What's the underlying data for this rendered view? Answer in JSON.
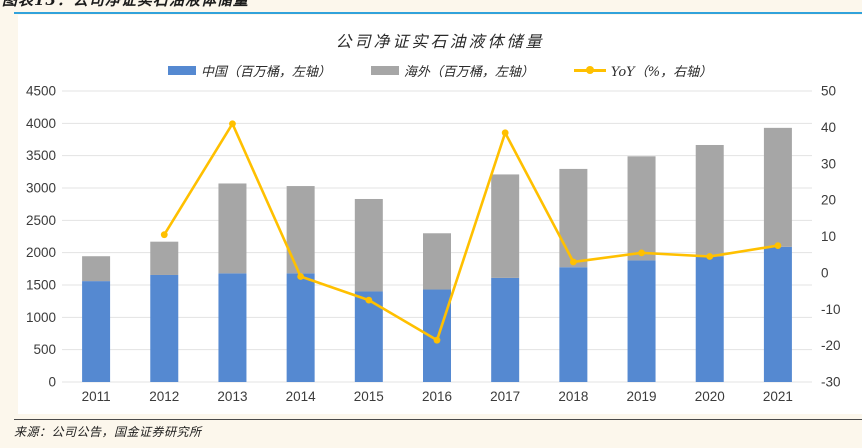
{
  "page": {
    "caption": "图表13：公司净证实石油液体储量",
    "source": "来源：公司公告，国金证券研究所"
  },
  "colors": {
    "china_bar": "#5589D1",
    "overseas_bar": "#A6A6A6",
    "yoy_line": "#FFC000",
    "caption_rule": "#31A2DB",
    "gridline": "#E3E3E3",
    "axis_text": "#3b3b3b",
    "panel_bg": "#ffffff",
    "page_bg": "#FCF7EC"
  },
  "chart_data": {
    "type": "bar",
    "subtype": "stacked-bars-with-line",
    "title": "公司净证实石油液体储量",
    "categories": [
      "2011",
      "2012",
      "2013",
      "2014",
      "2015",
      "2016",
      "2017",
      "2018",
      "2019",
      "2020",
      "2021"
    ],
    "series": [
      {
        "name": "中国（百万桶，左轴）",
        "type": "bar",
        "stack": "reserves",
        "axis": "left",
        "color": "#5589D1",
        "values": [
          1560,
          1655,
          1680,
          1680,
          1400,
          1430,
          1610,
          1775,
          1880,
          1940,
          2090
        ]
      },
      {
        "name": "海外（百万桶，左轴）",
        "type": "bar",
        "stack": "reserves",
        "axis": "left",
        "color": "#A6A6A6",
        "values": [
          385,
          515,
          1390,
          1350,
          1430,
          870,
          1600,
          1520,
          1610,
          1725,
          1840
        ]
      },
      {
        "name": "YoY（%，右轴）",
        "type": "line",
        "axis": "right",
        "color": "#FFC000",
        "values": [
          null,
          10.5,
          41,
          -1,
          -7.5,
          -18.5,
          38.5,
          3,
          5.5,
          4.5,
          7.5
        ]
      }
    ],
    "left_axis": {
      "min": 0,
      "max": 4500,
      "step": 500,
      "ticks": [
        "0",
        "500",
        "1000",
        "1500",
        "2000",
        "2500",
        "3000",
        "3500",
        "4000",
        "4500"
      ]
    },
    "right_axis": {
      "min": -30,
      "max": 50,
      "step": 10,
      "ticks": [
        "-30",
        "-20",
        "-10",
        "0",
        "10",
        "20",
        "30",
        "40",
        "50"
      ]
    },
    "grid": true,
    "legend_position": "top"
  }
}
